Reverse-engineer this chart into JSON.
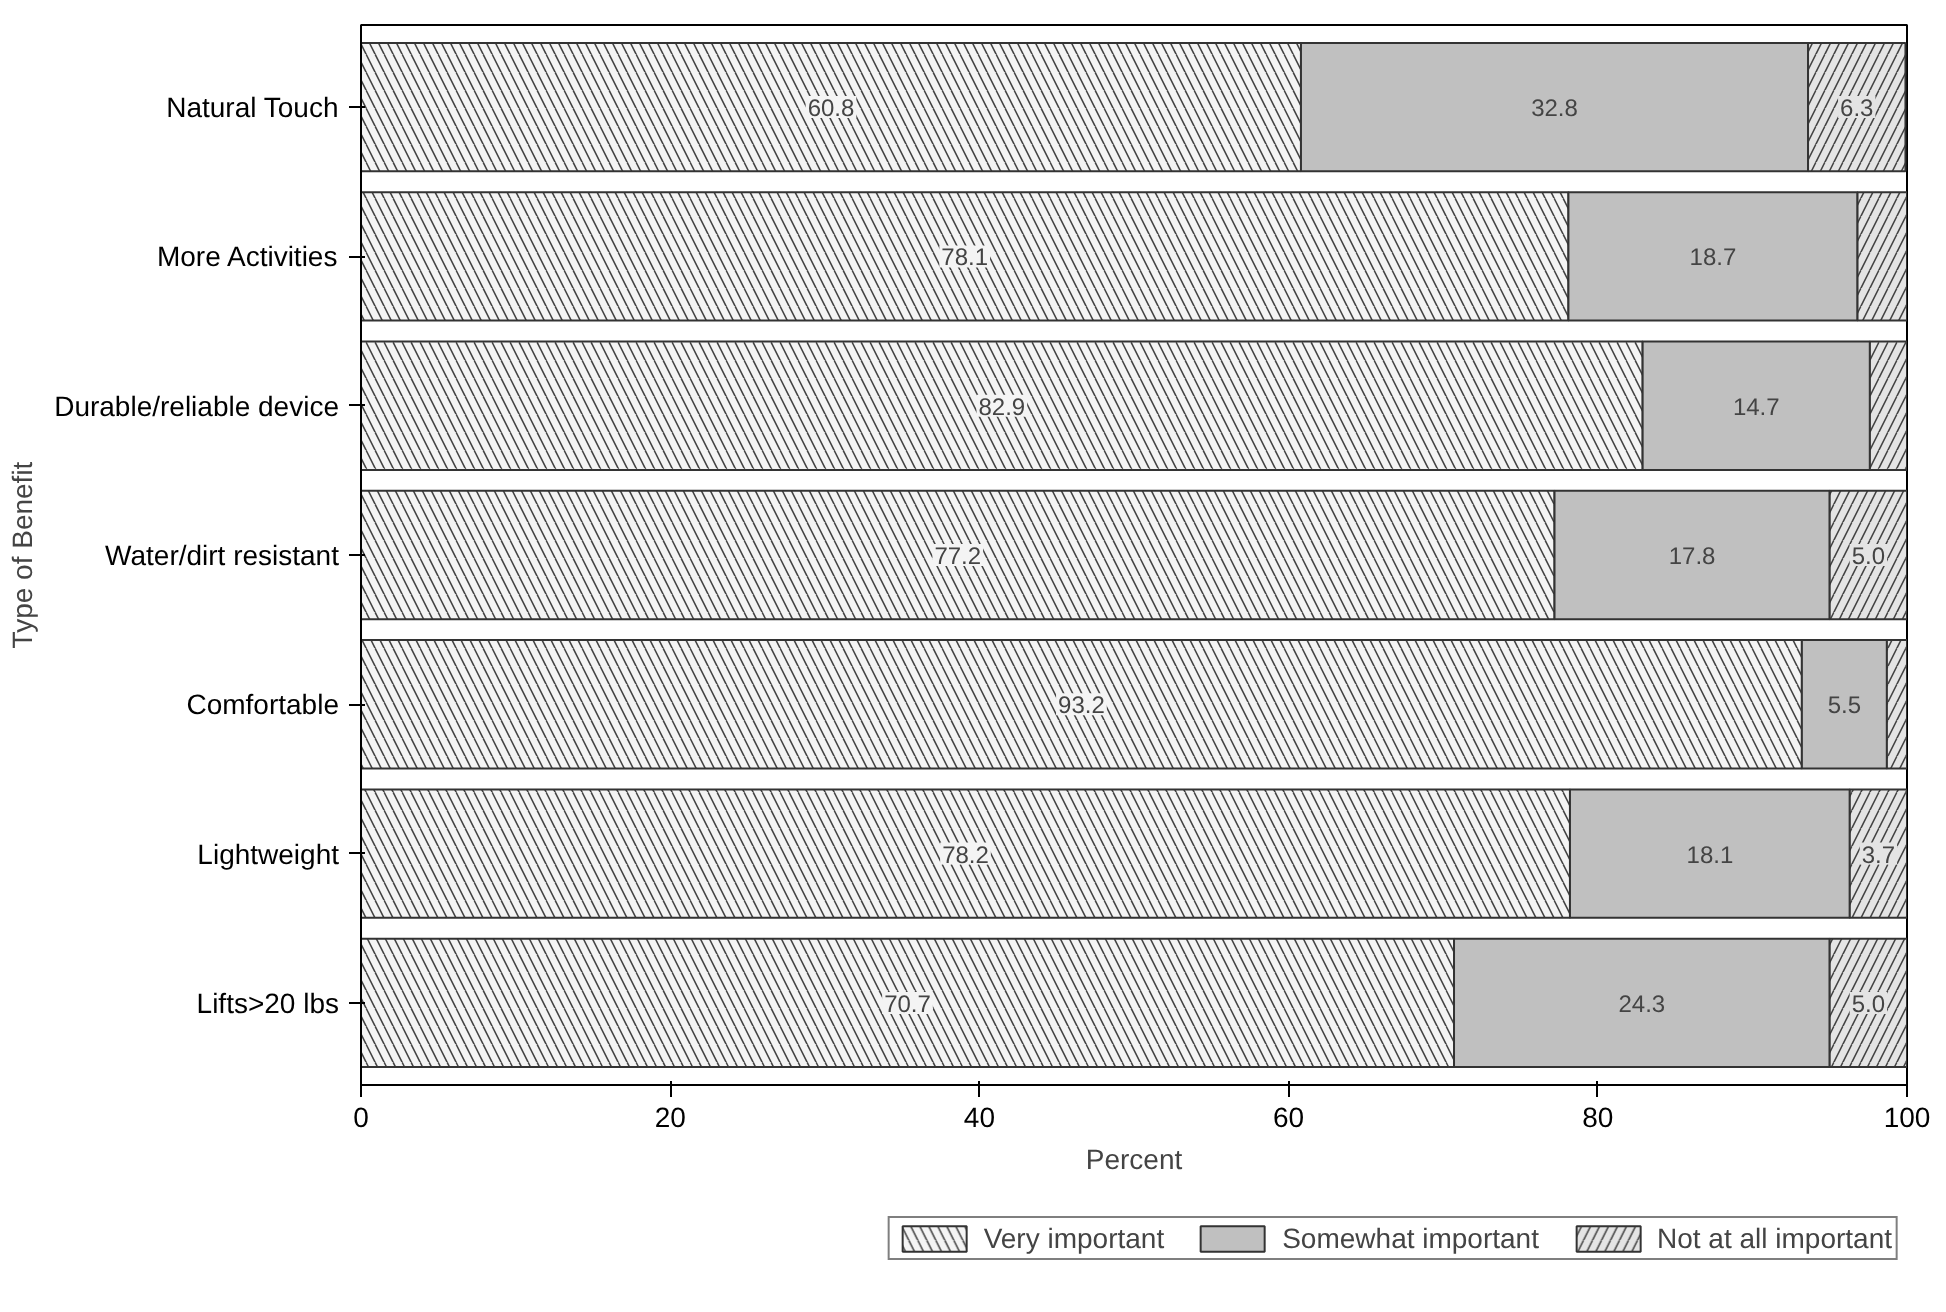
{
  "chart_data": {
    "type": "bar",
    "orientation": "horizontal",
    "stacked": true,
    "xlabel": "Percent",
    "ylabel": "Type of Benefit",
    "categories": [
      "Natural Touch",
      "More Activities",
      "Durable/reliable device",
      "Water/dirt resistant",
      "Comfortable",
      "Lightweight",
      "Lifts>20 lbs"
    ],
    "series": [
      {
        "name": "Very important",
        "color": "#f4f4f4",
        "values": [
          60.8,
          78.1,
          82.9,
          77.2,
          93.2,
          78.2,
          70.7
        ],
        "value_labels": [
          "60.8",
          "78.1",
          "82.9",
          "77.2",
          "93.2",
          "78.2",
          "70.7"
        ]
      },
      {
        "name": "Somewhat important",
        "color": "#c0c0c0",
        "values": [
          32.8,
          18.7,
          14.7,
          17.8,
          5.5,
          18.1,
          24.3
        ],
        "value_labels": [
          "32.8",
          "18.7",
          "14.7",
          "17.8",
          "5.5",
          "18.1",
          "24.3"
        ]
      },
      {
        "name": "Not at all important",
        "color": "#e4e4e4",
        "values": [
          6.3,
          3.2,
          2.4,
          5.0,
          1.3,
          3.7,
          5.0
        ],
        "value_labels": [
          "6.3",
          null,
          null,
          "5.0",
          null,
          "3.7",
          "5.0"
        ]
      }
    ],
    "xlim": [
      0,
      100
    ],
    "xticks": [
      0,
      20,
      40,
      60,
      80,
      100
    ],
    "grid": false,
    "legend": "bottom"
  }
}
